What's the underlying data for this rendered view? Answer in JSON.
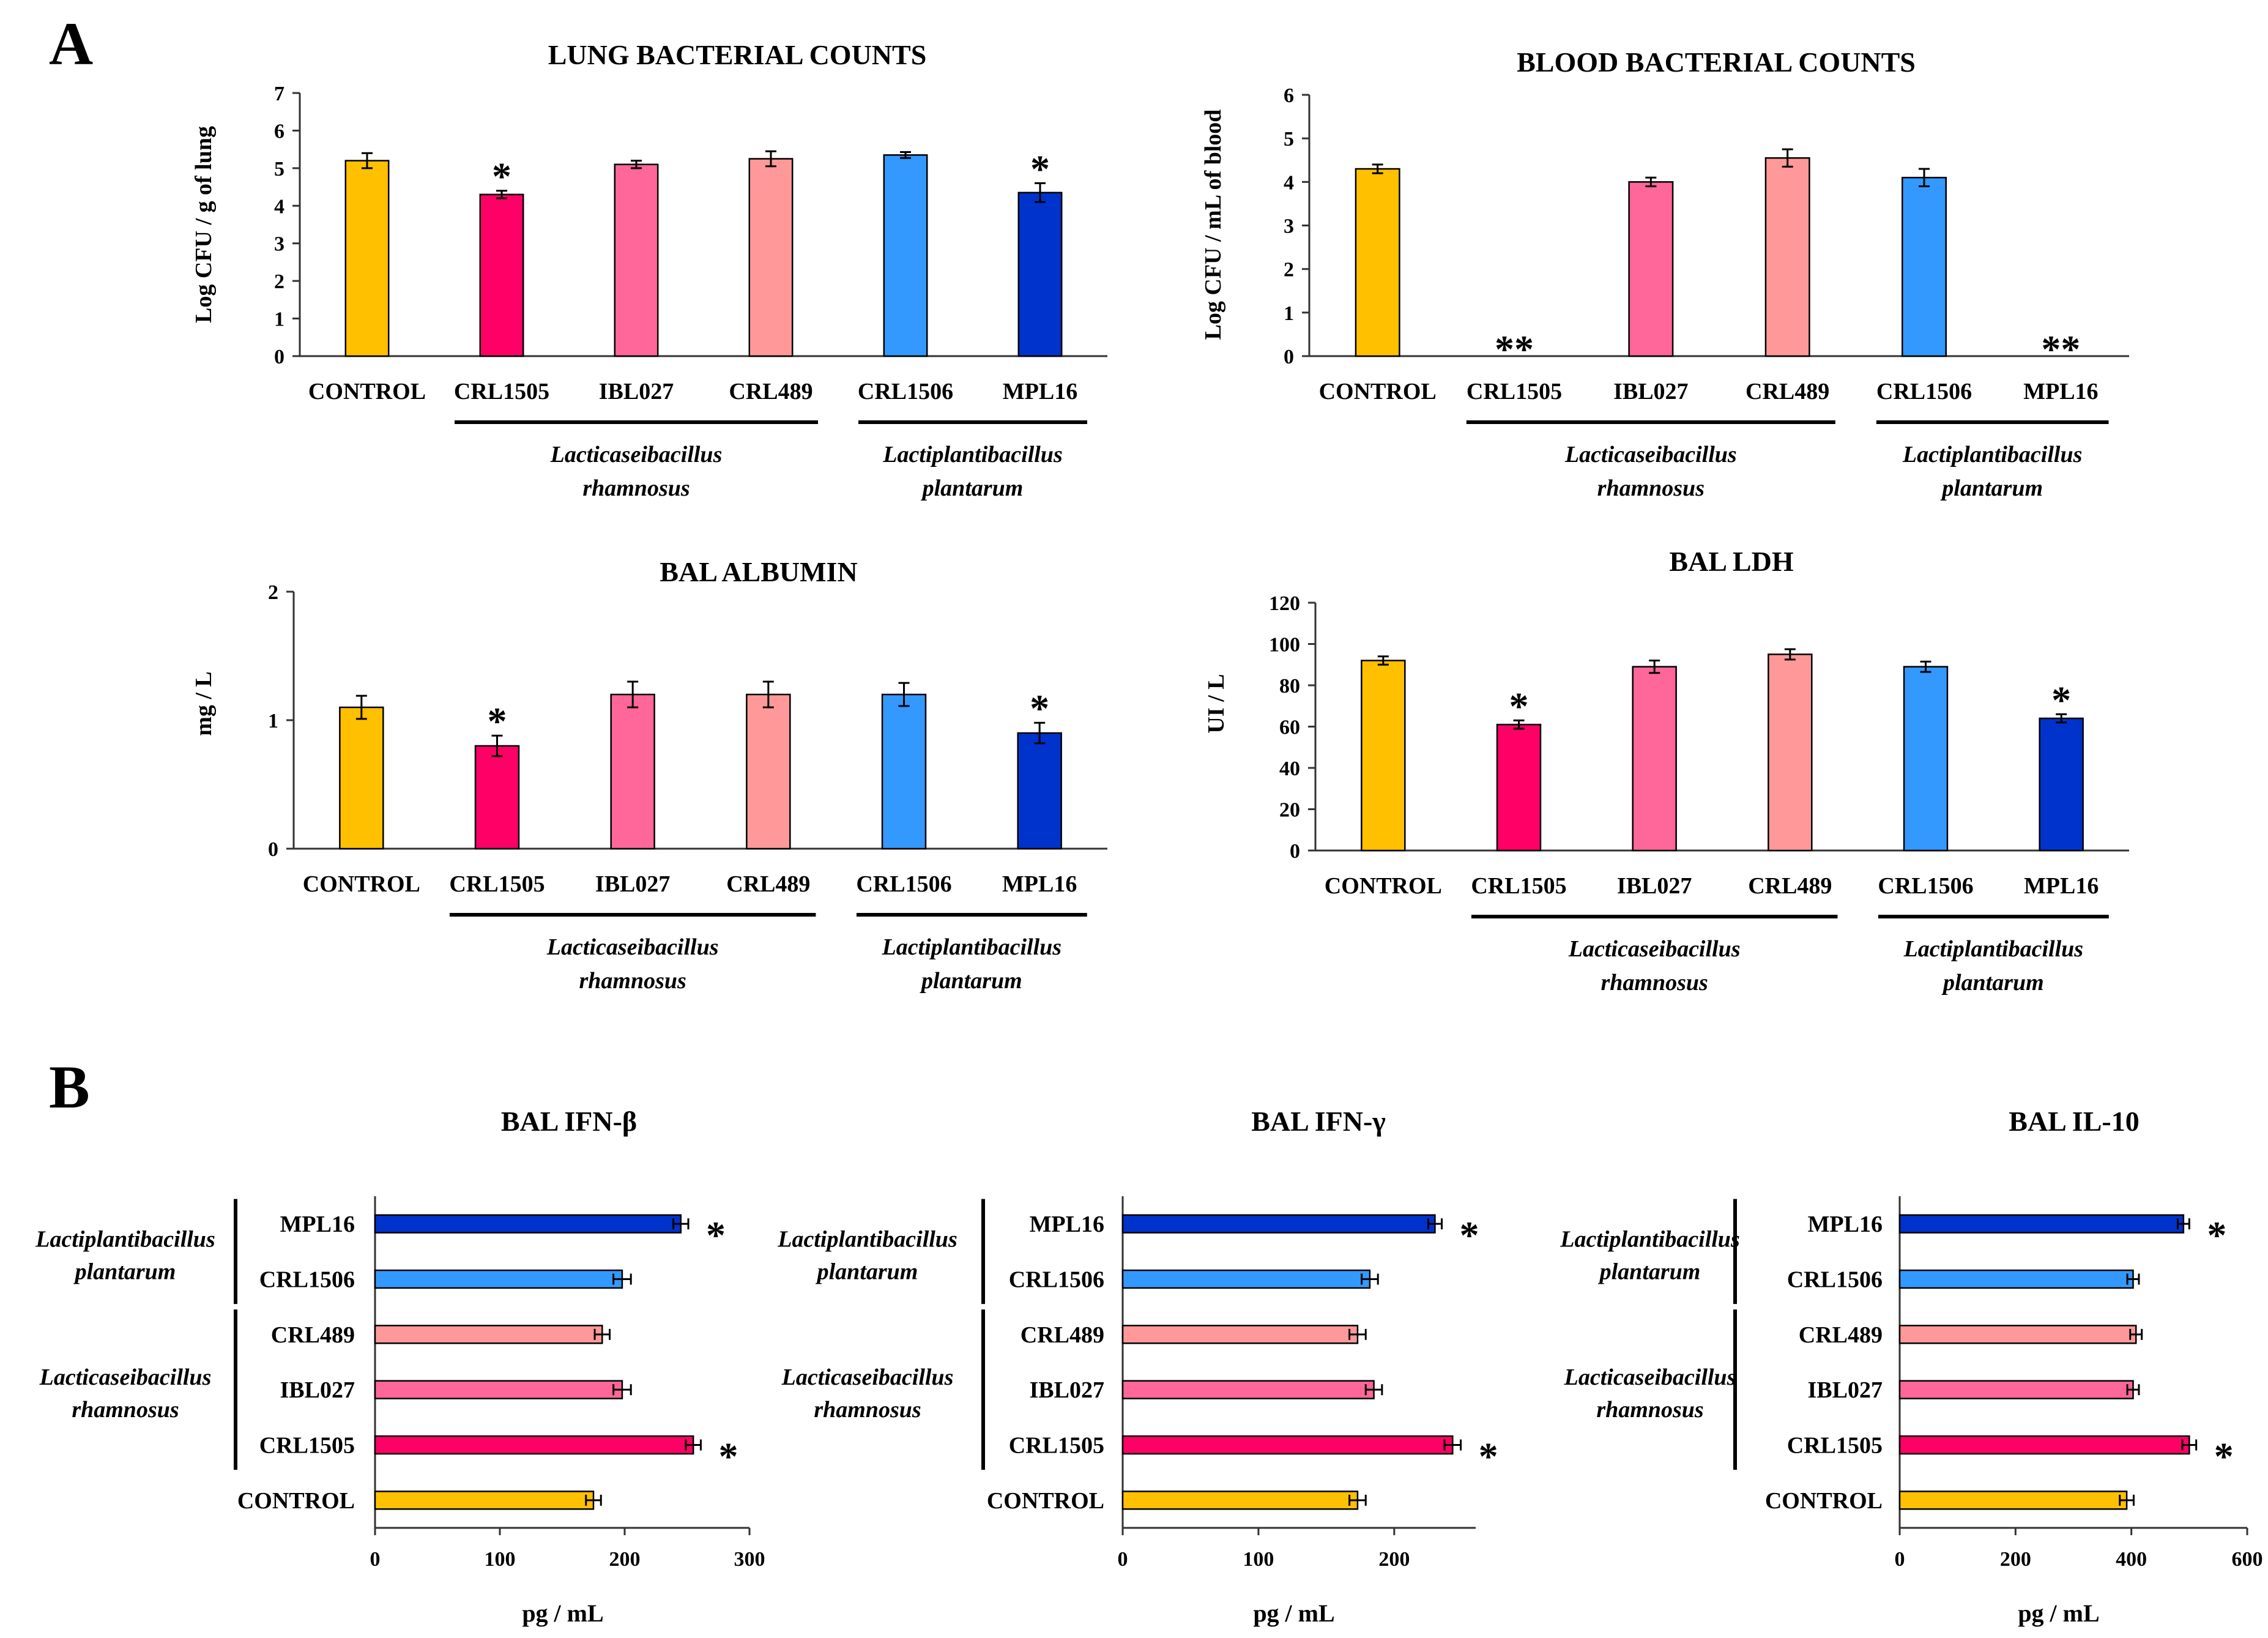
{
  "panels": [
    {
      "label": "A"
    },
    {
      "label": "B"
    }
  ],
  "colors": {
    "CONTROL": "#ffc000",
    "CRL1505": "#ff0066",
    "IBL027": "#ff6699",
    "CRL489": "#ff9999",
    "CRL1506": "#3399ff",
    "MPL16": "#0033cc"
  },
  "groups": {
    "rhamnosus": "Lacticaseibacillus rhamnosus",
    "rhamnosus_lines": [
      "Lacticaseibacillus",
      "rhamnosus"
    ],
    "plantarum": "Lactiplantibacillus plantarum",
    "plantarum_lines": [
      "Lactiplantibacillus",
      "plantarum"
    ]
  },
  "chart_data": [
    {
      "type": "bar",
      "panel": "A",
      "title": "LUNG BACTERIAL COUNTS",
      "ylabel": "Log CFU / g of lung",
      "xlabel": "",
      "ylim": [
        0,
        7
      ],
      "yticks": [
        0,
        1,
        2,
        3,
        4,
        5,
        6,
        7
      ],
      "categories": [
        "CONTROL",
        "CRL1505",
        "IBL027",
        "CRL489",
        "CRL1506",
        "MPL16"
      ],
      "values": [
        5.2,
        4.3,
        5.1,
        5.25,
        5.35,
        4.35
      ],
      "errors": [
        0.2,
        0.1,
        0.1,
        0.2,
        0.08,
        0.25
      ],
      "significance": [
        "",
        "*",
        "",
        "",
        "",
        "*"
      ],
      "groups": [
        {
          "from": 1,
          "to": 3,
          "key": "rhamnosus"
        },
        {
          "from": 4,
          "to": 5,
          "key": "plantarum"
        }
      ]
    },
    {
      "type": "bar",
      "panel": "A",
      "title": "BLOOD BACTERIAL COUNTS",
      "ylabel": "Log CFU / mL of blood",
      "xlabel": "",
      "ylim": [
        0,
        6
      ],
      "yticks": [
        0,
        1,
        2,
        3,
        4,
        5,
        6
      ],
      "categories": [
        "CONTROL",
        "CRL1505",
        "IBL027",
        "CRL489",
        "CRL1506",
        "MPL16"
      ],
      "values": [
        4.3,
        0,
        4.0,
        4.55,
        4.1,
        0
      ],
      "errors": [
        0.1,
        0,
        0.1,
        0.2,
        0.2,
        0
      ],
      "significance": [
        "",
        "**",
        "",
        "",
        "",
        "**"
      ],
      "groups": [
        {
          "from": 1,
          "to": 3,
          "key": "rhamnosus"
        },
        {
          "from": 4,
          "to": 5,
          "key": "plantarum"
        }
      ]
    },
    {
      "type": "bar",
      "panel": "A",
      "title": "BAL ALBUMIN",
      "ylabel": "mg / L",
      "xlabel": "",
      "ylim": [
        0,
        2
      ],
      "yticks": [
        0,
        1,
        2
      ],
      "categories": [
        "CONTROL",
        "CRL1505",
        "IBL027",
        "CRL489",
        "CRL1506",
        "MPL16"
      ],
      "values": [
        1.1,
        0.8,
        1.2,
        1.2,
        1.2,
        0.9
      ],
      "errors": [
        0.09,
        0.08,
        0.1,
        0.1,
        0.09,
        0.08
      ],
      "significance": [
        "",
        "*",
        "",
        "",
        "",
        "*"
      ],
      "groups": [
        {
          "from": 1,
          "to": 3,
          "key": "rhamnosus"
        },
        {
          "from": 4,
          "to": 5,
          "key": "plantarum"
        }
      ]
    },
    {
      "type": "bar",
      "panel": "A",
      "title": "BAL LDH",
      "ylabel": "UI / L",
      "xlabel": "",
      "ylim": [
        0,
        120
      ],
      "yticks": [
        0,
        20,
        40,
        60,
        80,
        100,
        120
      ],
      "categories": [
        "CONTROL",
        "CRL1505",
        "IBL027",
        "CRL489",
        "CRL1506",
        "MPL16"
      ],
      "values": [
        92,
        61,
        89,
        95,
        89,
        64
      ],
      "errors": [
        2,
        2,
        3,
        2.5,
        2.5,
        2
      ],
      "significance": [
        "",
        "*",
        "",
        "",
        "",
        "*"
      ],
      "groups": [
        {
          "from": 1,
          "to": 3,
          "key": "rhamnosus"
        },
        {
          "from": 4,
          "to": 5,
          "key": "plantarum"
        }
      ]
    },
    {
      "type": "hbar",
      "panel": "B",
      "title": "BAL IFN-β",
      "xlabel": "pg / mL",
      "ylabel": "",
      "xlim": [
        0,
        300
      ],
      "xticks": [
        0,
        100,
        200,
        300
      ],
      "categories": [
        "CONTROL",
        "CRL1505",
        "IBL027",
        "CRL489",
        "CRL1506",
        "MPL16"
      ],
      "values": [
        175,
        255,
        198,
        182,
        198,
        245
      ],
      "errors": [
        6,
        6,
        7,
        6,
        7,
        6
      ],
      "significance": [
        "",
        "*",
        "",
        "",
        "",
        "*"
      ],
      "groups": [
        {
          "from": 1,
          "to": 3,
          "key": "rhamnosus"
        },
        {
          "from": 4,
          "to": 5,
          "key": "plantarum"
        }
      ]
    },
    {
      "type": "hbar",
      "panel": "B",
      "title": "BAL IFN-γ",
      "xlabel": "pg / mL",
      "ylabel": "",
      "xlim": [
        0,
        260
      ],
      "xticks": [
        0,
        100,
        200
      ],
      "categories": [
        "CONTROL",
        "CRL1505",
        "IBL027",
        "CRL489",
        "CRL1506",
        "MPL16"
      ],
      "values": [
        173,
        243,
        185,
        173,
        182,
        230
      ],
      "errors": [
        6,
        6,
        6,
        6,
        6,
        5
      ],
      "significance": [
        "",
        "*",
        "",
        "",
        "",
        "*"
      ],
      "groups": [
        {
          "from": 1,
          "to": 3,
          "key": "rhamnosus"
        },
        {
          "from": 4,
          "to": 5,
          "key": "plantarum"
        }
      ]
    },
    {
      "type": "hbar",
      "panel": "B",
      "title": "BAL IL-10",
      "xlabel": "pg / mL",
      "ylabel": "",
      "xlim": [
        0,
        600
      ],
      "xticks": [
        0,
        200,
        400,
        600
      ],
      "categories": [
        "CONTROL",
        "CRL1505",
        "IBL027",
        "CRL489",
        "CRL1506",
        "MPL16"
      ],
      "values": [
        392,
        500,
        403,
        408,
        403,
        490
      ],
      "errors": [
        12,
        12,
        10,
        10,
        10,
        10
      ],
      "significance": [
        "",
        "*",
        "",
        "",
        "",
        "*"
      ],
      "groups": [
        {
          "from": 1,
          "to": 3,
          "key": "rhamnosus"
        },
        {
          "from": 4,
          "to": 5,
          "key": "plantarum"
        }
      ]
    }
  ]
}
